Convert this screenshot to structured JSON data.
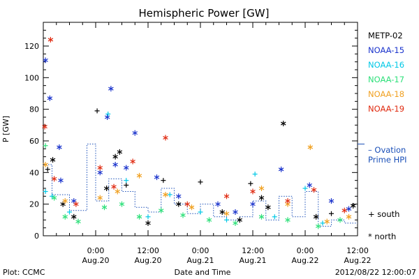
{
  "chart_data": {
    "type": "scatter",
    "title": "Hemispheric Power [GW]",
    "ylabel": "P [GW]",
    "xlabel": "Date and Time",
    "ylim": [
      0,
      135
    ],
    "xlim": [
      "2012-08-19 12:00",
      "2012-08-22 12:00"
    ],
    "y_ticks": [
      "0",
      "20",
      "40",
      "60",
      "80",
      "100",
      "120"
    ],
    "x_ticks": [
      {
        "time": "2012-08-20 00:00",
        "line1": "0:00",
        "line2": "Aug.20"
      },
      {
        "time": "2012-08-20 12:00",
        "line1": "12:00",
        "line2": "Aug.20"
      },
      {
        "time": "2012-08-21 00:00",
        "line1": "0:00",
        "line2": "Aug.21"
      },
      {
        "time": "2012-08-21 12:00",
        "line1": "12:00",
        "line2": "Aug.21"
      },
      {
        "time": "2012-08-22 00:00",
        "line1": "0:00",
        "line2": "Aug.22"
      },
      {
        "time": "2012-08-22 12:00",
        "line1": "12:00",
        "line2": "Aug.22"
      }
    ],
    "grid": false,
    "legend_position": "right",
    "series": [
      {
        "name": "METP-02",
        "color": "#000000",
        "points": [
          {
            "t": "2012-08-19 13:00",
            "y": 42,
            "m": "south"
          },
          {
            "t": "2012-08-19 14:10",
            "y": 48,
            "m": "north"
          },
          {
            "t": "2012-08-19 16:30",
            "y": 20,
            "m": "north"
          },
          {
            "t": "2012-08-19 19:00",
            "y": 12,
            "m": "north"
          },
          {
            "t": "2012-08-20 00:20",
            "y": 79,
            "m": "south"
          },
          {
            "t": "2012-08-20 02:30",
            "y": 30,
            "m": "north"
          },
          {
            "t": "2012-08-20 04:30",
            "y": 50,
            "m": "north"
          },
          {
            "t": "2012-08-20 05:30",
            "y": 53,
            "m": "north"
          },
          {
            "t": "2012-08-20 07:00",
            "y": 32,
            "m": "south"
          },
          {
            "t": "2012-08-20 12:00",
            "y": 8,
            "m": "north"
          },
          {
            "t": "2012-08-20 15:30",
            "y": 35,
            "m": "south"
          },
          {
            "t": "2012-08-20 19:00",
            "y": 20,
            "m": "north"
          },
          {
            "t": "2012-08-21 00:00",
            "y": 34,
            "m": "south"
          },
          {
            "t": "2012-08-21 05:00",
            "y": 15,
            "m": "north"
          },
          {
            "t": "2012-08-21 09:00",
            "y": 10,
            "m": "north"
          },
          {
            "t": "2012-08-21 11:30",
            "y": 33,
            "m": "south"
          },
          {
            "t": "2012-08-21 14:00",
            "y": 24,
            "m": "north"
          },
          {
            "t": "2012-08-21 15:30",
            "y": 18,
            "m": "north"
          },
          {
            "t": "2012-08-21 19:00",
            "y": 71,
            "m": "north"
          },
          {
            "t": "2012-08-22 02:30",
            "y": 12,
            "m": "north"
          },
          {
            "t": "2012-08-22 06:00",
            "y": 14,
            "m": "south"
          },
          {
            "t": "2012-08-22 11:00",
            "y": 19,
            "m": "north"
          }
        ]
      },
      {
        "name": "NOAA-15",
        "color": "#1a33cc",
        "points": [
          {
            "t": "2012-08-19 12:30",
            "y": 111,
            "m": "north"
          },
          {
            "t": "2012-08-19 13:30",
            "y": 87,
            "m": "north"
          },
          {
            "t": "2012-08-19 15:40",
            "y": 56,
            "m": "north"
          },
          {
            "t": "2012-08-19 16:00",
            "y": 35,
            "m": "north"
          },
          {
            "t": "2012-08-19 19:00",
            "y": 22,
            "m": "north"
          },
          {
            "t": "2012-08-20 01:00",
            "y": 40,
            "m": "north"
          },
          {
            "t": "2012-08-20 02:40",
            "y": 75,
            "m": "north"
          },
          {
            "t": "2012-08-20 03:30",
            "y": 93,
            "m": "north"
          },
          {
            "t": "2012-08-20 04:30",
            "y": 45,
            "m": "north"
          },
          {
            "t": "2012-08-20 07:00",
            "y": 43,
            "m": "north"
          },
          {
            "t": "2012-08-20 09:00",
            "y": 65,
            "m": "north"
          },
          {
            "t": "2012-08-20 14:00",
            "y": 37,
            "m": "north"
          },
          {
            "t": "2012-08-20 19:00",
            "y": 25,
            "m": "north"
          },
          {
            "t": "2012-08-21 04:00",
            "y": 20,
            "m": "north"
          },
          {
            "t": "2012-08-21 08:00",
            "y": 15,
            "m": "north"
          },
          {
            "t": "2012-08-21 12:00",
            "y": 20,
            "m": "north"
          },
          {
            "t": "2012-08-21 18:30",
            "y": 42,
            "m": "north"
          },
          {
            "t": "2012-08-22 01:00",
            "y": 32,
            "m": "north"
          },
          {
            "t": "2012-08-22 06:00",
            "y": 22,
            "m": "north"
          },
          {
            "t": "2012-08-22 10:00",
            "y": 17,
            "m": "north"
          }
        ]
      },
      {
        "name": "NOAA-16",
        "color": "#00c8e6",
        "points": [
          {
            "t": "2012-08-19 12:30",
            "y": 28,
            "m": "south"
          },
          {
            "t": "2012-08-19 14:00",
            "y": 25,
            "m": "south"
          },
          {
            "t": "2012-08-19 18:00",
            "y": 15,
            "m": "south"
          },
          {
            "t": "2012-08-20 02:50",
            "y": 77,
            "m": "south"
          },
          {
            "t": "2012-08-20 07:00",
            "y": 35,
            "m": "south"
          },
          {
            "t": "2012-08-20 12:00",
            "y": 12,
            "m": "south"
          },
          {
            "t": "2012-08-20 17:00",
            "y": 26,
            "m": "south"
          },
          {
            "t": "2012-08-21 00:00",
            "y": 15,
            "m": "south"
          },
          {
            "t": "2012-08-21 06:00",
            "y": 10,
            "m": "south"
          },
          {
            "t": "2012-08-21 12:30",
            "y": 39,
            "m": "south"
          },
          {
            "t": "2012-08-21 17:00",
            "y": 12,
            "m": "south"
          },
          {
            "t": "2012-08-22 00:00",
            "y": 30,
            "m": "south"
          },
          {
            "t": "2012-08-22 04:00",
            "y": 8,
            "m": "south"
          }
        ]
      },
      {
        "name": "NOAA-17",
        "color": "#2ee07a",
        "points": [
          {
            "t": "2012-08-19 12:30",
            "y": 57,
            "m": "south"
          },
          {
            "t": "2012-08-19 14:30",
            "y": 24,
            "m": "north"
          },
          {
            "t": "2012-08-19 17:00",
            "y": 12,
            "m": "north"
          },
          {
            "t": "2012-08-19 20:00",
            "y": 9,
            "m": "north"
          },
          {
            "t": "2012-08-20 02:00",
            "y": 18,
            "m": "north"
          },
          {
            "t": "2012-08-20 06:00",
            "y": 20,
            "m": "north"
          },
          {
            "t": "2012-08-20 10:00",
            "y": 12,
            "m": "north"
          },
          {
            "t": "2012-08-20 15:00",
            "y": 16,
            "m": "north"
          },
          {
            "t": "2012-08-20 20:00",
            "y": 13,
            "m": "north"
          },
          {
            "t": "2012-08-21 02:00",
            "y": 10,
            "m": "north"
          },
          {
            "t": "2012-08-21 08:00",
            "y": 8,
            "m": "north"
          },
          {
            "t": "2012-08-21 14:00",
            "y": 12,
            "m": "north"
          },
          {
            "t": "2012-08-21 20:00",
            "y": 10,
            "m": "north"
          },
          {
            "t": "2012-08-22 03:00",
            "y": 6,
            "m": "north"
          },
          {
            "t": "2012-08-22 08:00",
            "y": 10,
            "m": "north"
          }
        ]
      },
      {
        "name": "NOAA-18",
        "color": "#f0a020",
        "points": [
          {
            "t": "2012-08-19 12:30",
            "y": 45,
            "m": "north"
          },
          {
            "t": "2012-08-19 17:00",
            "y": 22,
            "m": "north"
          },
          {
            "t": "2012-08-20 01:00",
            "y": 24,
            "m": "north"
          },
          {
            "t": "2012-08-20 05:00",
            "y": 28,
            "m": "north"
          },
          {
            "t": "2012-08-20 10:00",
            "y": 38,
            "m": "north"
          },
          {
            "t": "2012-08-20 16:00",
            "y": 26,
            "m": "north"
          },
          {
            "t": "2012-08-20 22:00",
            "y": 18,
            "m": "north"
          },
          {
            "t": "2012-08-21 06:00",
            "y": 14,
            "m": "north"
          },
          {
            "t": "2012-08-21 14:00",
            "y": 30,
            "m": "north"
          },
          {
            "t": "2012-08-21 20:00",
            "y": 20,
            "m": "north"
          },
          {
            "t": "2012-08-22 01:10",
            "y": 56,
            "m": "north"
          },
          {
            "t": "2012-08-22 05:00",
            "y": 9,
            "m": "north"
          },
          {
            "t": "2012-08-22 10:00",
            "y": 12,
            "m": "north"
          }
        ]
      },
      {
        "name": "NOAA-19",
        "color": "#e02a10",
        "points": [
          {
            "t": "2012-08-19 12:20",
            "y": 69,
            "m": "north"
          },
          {
            "t": "2012-08-19 13:40",
            "y": 124,
            "m": "north"
          },
          {
            "t": "2012-08-19 14:30",
            "y": 36,
            "m": "north"
          },
          {
            "t": "2012-08-19 19:30",
            "y": 20,
            "m": "north"
          },
          {
            "t": "2012-08-20 01:00",
            "y": 43,
            "m": "north"
          },
          {
            "t": "2012-08-20 04:10",
            "y": 31,
            "m": "north"
          },
          {
            "t": "2012-08-20 08:30",
            "y": 47,
            "m": "north"
          },
          {
            "t": "2012-08-20 16:00",
            "y": 62,
            "m": "north"
          },
          {
            "t": "2012-08-20 21:00",
            "y": 20,
            "m": "north"
          },
          {
            "t": "2012-08-21 06:00",
            "y": 25,
            "m": "north"
          },
          {
            "t": "2012-08-21 12:00",
            "y": 28,
            "m": "north"
          },
          {
            "t": "2012-08-21 20:00",
            "y": 22,
            "m": "north"
          },
          {
            "t": "2012-08-22 02:00",
            "y": 29,
            "m": "north"
          },
          {
            "t": "2012-08-22 09:00",
            "y": 16,
            "m": "north"
          }
        ]
      }
    ],
    "ovation_line": {
      "label_line1": "– Ovation",
      "label_line2": "Prime HPI",
      "color": "#1a4fb8"
    },
    "marker_legend": {
      "south": "+ south",
      "north": "* north"
    }
  },
  "footer": {
    "plot_source": "Plot: CCMC",
    "timestamp": "2012/08/22 12:00:07"
  }
}
